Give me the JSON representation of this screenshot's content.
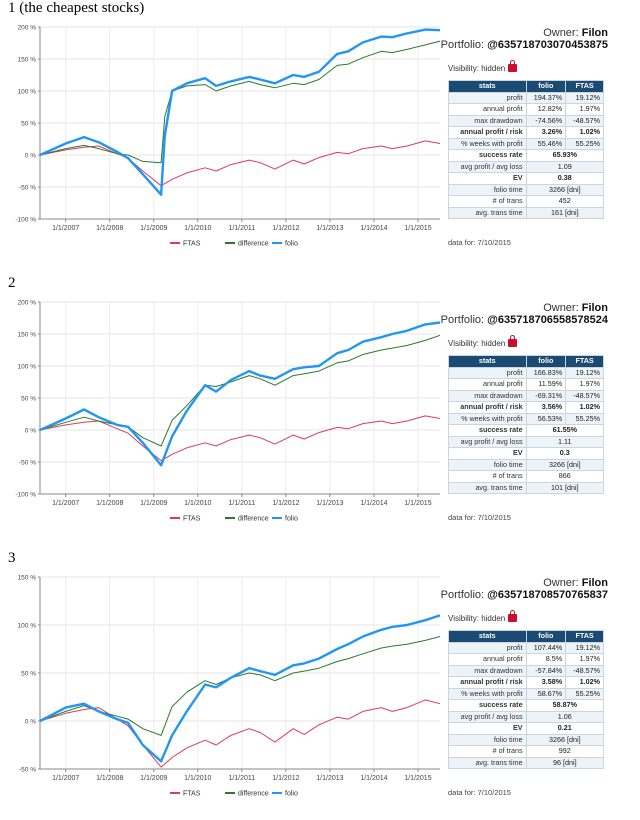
{
  "colors": {
    "ftas": "#dc3b5d",
    "difference": "#2c7a2c",
    "folio": "#2196f3",
    "header": "#1b4a72"
  },
  "sections": [
    {
      "title": "1 (the cheapest stocks)",
      "owner_label": "Owner:",
      "owner": "Filon",
      "portfolio_label": "Portfolio:",
      "portfolio": "@635718703070453875",
      "visibility": "Visibility: hidden",
      "stats_header": [
        "stats",
        "folio",
        "FTAS"
      ],
      "stats_rows": [
        {
          "label": "profit",
          "folio": "194.37%",
          "ftas": "19.12%"
        },
        {
          "label": "annual profit",
          "folio": "12.82%",
          "ftas": "1.97%"
        },
        {
          "label": "max drawdown",
          "folio": "-74.56%",
          "ftas": "-48.57%"
        },
        {
          "label": "annual profit / risk",
          "folio": "3.26%",
          "ftas": "1.02%"
        },
        {
          "label": "% weeks with profit",
          "folio": "55.46%",
          "ftas": "55.25%"
        },
        {
          "label": "success rate",
          "folio": "65.93%"
        },
        {
          "label": "avg profit / avg loss",
          "folio": "1.09"
        },
        {
          "label": "EV",
          "folio": "0.38"
        },
        {
          "label": "folio time",
          "folio": "3266 [dni]"
        },
        {
          "label": "# of trans",
          "folio": "452"
        },
        {
          "label": "avg. trans time",
          "folio": "161 [dni]"
        }
      ],
      "data_for": "data for: 7/10/2015"
    },
    {
      "title": "2",
      "owner_label": "Owner:",
      "owner": "Filon",
      "portfolio_label": "Portfolio:",
      "portfolio": "@635718706558578524",
      "visibility": "Visibility: hidden",
      "stats_header": [
        "stats",
        "folio",
        "FTAS"
      ],
      "stats_rows": [
        {
          "label": "profit",
          "folio": "166.83%",
          "ftas": "19.12%"
        },
        {
          "label": "annual profit",
          "folio": "11.59%",
          "ftas": "1.97%"
        },
        {
          "label": "max drawdown",
          "folio": "-69.31%",
          "ftas": "-48.57%"
        },
        {
          "label": "annual profit / risk",
          "folio": "3.56%",
          "ftas": "1.02%"
        },
        {
          "label": "% weeks with profit",
          "folio": "56.53%",
          "ftas": "55.25%"
        },
        {
          "label": "success rate",
          "folio": "61.55%"
        },
        {
          "label": "avg profit / avg loss",
          "folio": "1.11"
        },
        {
          "label": "EV",
          "folio": "0.3"
        },
        {
          "label": "folio time",
          "folio": "3266 [dni]"
        },
        {
          "label": "# of trans",
          "folio": "866"
        },
        {
          "label": "avg. trans time",
          "folio": "101 [dni]"
        }
      ],
      "data_for": "data for: 7/10/2015"
    },
    {
      "title": "3",
      "owner_label": "Owner:",
      "owner": "Filon",
      "portfolio_label": "Portfolio:",
      "portfolio": "@635718708570765837",
      "visibility": "Visibility: hidden",
      "stats_header": [
        "stats",
        "folio",
        "FTAS"
      ],
      "stats_rows": [
        {
          "label": "profit",
          "folio": "107.44%",
          "ftas": "19.12%"
        },
        {
          "label": "annual profit",
          "folio": "8.5%",
          "ftas": "1.97%"
        },
        {
          "label": "max drawdown",
          "folio": "-57.84%",
          "ftas": "-48.57%"
        },
        {
          "label": "annual profit / risk",
          "folio": "3.58%",
          "ftas": "1.02%"
        },
        {
          "label": "% weeks with profit",
          "folio": "58.67%",
          "ftas": "55.25%"
        },
        {
          "label": "success rate",
          "folio": "58.87%"
        },
        {
          "label": "avg profit / avg loss",
          "folio": "1.06"
        },
        {
          "label": "EV",
          "folio": "0.21"
        },
        {
          "label": "folio time",
          "folio": "3266 [dni]"
        },
        {
          "label": "# of trans",
          "folio": "992"
        },
        {
          "label": "avg. trans time",
          "folio": "96 [dni]"
        }
      ],
      "data_for": "data for: 7/10/2015"
    }
  ],
  "chart_data": [
    {
      "type": "line",
      "ylim": [
        -100,
        200
      ],
      "yticks": [
        -100,
        -50,
        0,
        50,
        100,
        150,
        200
      ],
      "ytick_labels": [
        "-100 %",
        "-50 %",
        "0 %",
        "50 %",
        "100 %",
        "150 %",
        "200 %"
      ],
      "xlim": [
        "2006-06",
        "2015-07"
      ],
      "xtick_labels": [
        "1/1/2007",
        "1/1/2008",
        "1/1/2009",
        "1/1/2010",
        "1/1/2011",
        "1/1/2012",
        "1/1/2013",
        "1/1/2014",
        "1/1/2015"
      ],
      "grid": true,
      "legend": "bottom",
      "series": [
        {
          "name": "FTAS",
          "x": [
            "2006-06",
            "2007-01",
            "2007-06",
            "2007-10",
            "2008-03",
            "2008-06",
            "2008-10",
            "2009-03",
            "2009-06",
            "2009-10",
            "2010-03",
            "2010-06",
            "2010-10",
            "2011-03",
            "2011-06",
            "2011-10",
            "2012-03",
            "2012-06",
            "2012-10",
            "2013-03",
            "2013-06",
            "2013-10",
            "2014-03",
            "2014-06",
            "2014-10",
            "2015-03",
            "2015-07"
          ],
          "y": [
            0,
            8,
            12,
            14,
            2,
            -5,
            -25,
            -48,
            -38,
            -28,
            -20,
            -25,
            -15,
            -8,
            -12,
            -22,
            -8,
            -14,
            -4,
            4,
            2,
            10,
            14,
            10,
            14,
            22,
            18
          ]
        },
        {
          "name": "difference",
          "x": [
            "2006-06",
            "2007-01",
            "2007-06",
            "2007-10",
            "2008-03",
            "2008-06",
            "2008-10",
            "2009-03",
            "2009-04",
            "2009-06",
            "2009-10",
            "2010-03",
            "2010-06",
            "2010-10",
            "2011-03",
            "2011-06",
            "2011-10",
            "2012-03",
            "2012-06",
            "2012-10",
            "2013-03",
            "2013-06",
            "2013-10",
            "2014-03",
            "2014-06",
            "2014-10",
            "2015-03",
            "2015-07"
          ],
          "y": [
            0,
            10,
            15,
            10,
            2,
            0,
            -10,
            -12,
            60,
            100,
            108,
            110,
            100,
            108,
            115,
            110,
            105,
            112,
            110,
            118,
            140,
            142,
            152,
            162,
            160,
            165,
            172,
            178
          ]
        },
        {
          "name": "folio",
          "x": [
            "2006-06",
            "2007-01",
            "2007-06",
            "2007-10",
            "2008-03",
            "2008-06",
            "2008-10",
            "2009-03",
            "2009-04",
            "2009-06",
            "2009-10",
            "2010-03",
            "2010-06",
            "2010-10",
            "2011-03",
            "2011-06",
            "2011-10",
            "2012-03",
            "2012-06",
            "2012-10",
            "2013-03",
            "2013-06",
            "2013-10",
            "2014-03",
            "2014-06",
            "2014-10",
            "2015-03",
            "2015-07"
          ],
          "y": [
            0,
            18,
            28,
            20,
            5,
            -5,
            -30,
            -62,
            30,
            100,
            112,
            120,
            108,
            115,
            122,
            118,
            112,
            125,
            122,
            130,
            158,
            162,
            176,
            185,
            184,
            190,
            196,
            195
          ]
        }
      ]
    },
    {
      "type": "line",
      "ylim": [
        -100,
        200
      ],
      "yticks": [
        -100,
        -50,
        0,
        50,
        100,
        150,
        200
      ],
      "ytick_labels": [
        "-100 %",
        "-50 %",
        "0 %",
        "50 %",
        "100 %",
        "150 %",
        "200 %"
      ],
      "xlim": [
        "2006-06",
        "2015-07"
      ],
      "xtick_labels": [
        "1/1/2007",
        "1/1/2008",
        "1/1/2009",
        "1/1/2010",
        "1/1/2011",
        "1/1/2012",
        "1/1/2013",
        "1/1/2014",
        "1/1/2015"
      ],
      "grid": true,
      "legend": "bottom",
      "series": [
        {
          "name": "FTAS",
          "x": [
            "2006-06",
            "2007-01",
            "2007-06",
            "2007-10",
            "2008-03",
            "2008-06",
            "2008-10",
            "2009-03",
            "2009-06",
            "2009-10",
            "2010-03",
            "2010-06",
            "2010-10",
            "2011-03",
            "2011-06",
            "2011-10",
            "2012-03",
            "2012-06",
            "2012-10",
            "2013-03",
            "2013-06",
            "2013-10",
            "2014-03",
            "2014-06",
            "2014-10",
            "2015-03",
            "2015-07"
          ],
          "y": [
            0,
            8,
            12,
            14,
            2,
            -5,
            -25,
            -48,
            -38,
            -28,
            -20,
            -25,
            -15,
            -8,
            -12,
            -22,
            -8,
            -14,
            -4,
            4,
            2,
            10,
            14,
            10,
            14,
            22,
            18
          ]
        },
        {
          "name": "difference",
          "x": [
            "2006-06",
            "2007-01",
            "2007-06",
            "2007-10",
            "2008-03",
            "2008-06",
            "2008-10",
            "2009-03",
            "2009-06",
            "2009-10",
            "2010-03",
            "2010-06",
            "2010-10",
            "2011-03",
            "2011-06",
            "2011-10",
            "2012-03",
            "2012-06",
            "2012-10",
            "2013-03",
            "2013-06",
            "2013-10",
            "2014-03",
            "2014-06",
            "2014-10",
            "2015-03",
            "2015-07"
          ],
          "y": [
            0,
            12,
            20,
            14,
            8,
            5,
            -12,
            -25,
            15,
            38,
            70,
            68,
            75,
            85,
            80,
            70,
            85,
            88,
            92,
            105,
            108,
            118,
            125,
            128,
            132,
            140,
            148
          ]
        },
        {
          "name": "folio",
          "x": [
            "2006-06",
            "2007-01",
            "2007-06",
            "2007-10",
            "2008-03",
            "2008-06",
            "2008-10",
            "2009-03",
            "2009-06",
            "2009-10",
            "2010-03",
            "2010-06",
            "2010-10",
            "2011-03",
            "2011-06",
            "2011-10",
            "2012-03",
            "2012-06",
            "2012-10",
            "2013-03",
            "2013-06",
            "2013-10",
            "2014-03",
            "2014-06",
            "2014-10",
            "2015-03",
            "2015-07"
          ],
          "y": [
            0,
            18,
            32,
            20,
            8,
            5,
            -20,
            -55,
            -10,
            30,
            70,
            60,
            78,
            92,
            85,
            80,
            95,
            98,
            100,
            120,
            125,
            138,
            145,
            150,
            155,
            165,
            168
          ]
        }
      ]
    },
    {
      "type": "line",
      "ylim": [
        -50,
        150
      ],
      "yticks": [
        -50,
        0,
        50,
        100,
        150
      ],
      "ytick_labels": [
        "-50 %",
        "0 %",
        "50 %",
        "100 %",
        "150 %"
      ],
      "xlim": [
        "2006-06",
        "2015-07"
      ],
      "xtick_labels": [
        "1/1/2007",
        "1/1/2008",
        "1/1/2009",
        "1/1/2010",
        "1/1/2011",
        "1/1/2012",
        "1/1/2013",
        "1/1/2014",
        "1/1/2015"
      ],
      "grid": true,
      "legend": "bottom",
      "series": [
        {
          "name": "FTAS",
          "x": [
            "2006-06",
            "2007-01",
            "2007-06",
            "2007-10",
            "2008-03",
            "2008-06",
            "2008-10",
            "2009-03",
            "2009-06",
            "2009-10",
            "2010-03",
            "2010-06",
            "2010-10",
            "2011-03",
            "2011-06",
            "2011-10",
            "2012-03",
            "2012-06",
            "2012-10",
            "2013-03",
            "2013-06",
            "2013-10",
            "2014-03",
            "2014-06",
            "2014-10",
            "2015-03",
            "2015-07"
          ],
          "y": [
            0,
            8,
            12,
            14,
            2,
            -5,
            -25,
            -48,
            -38,
            -28,
            -20,
            -25,
            -15,
            -8,
            -12,
            -22,
            -8,
            -14,
            -4,
            4,
            2,
            10,
            14,
            10,
            14,
            22,
            18
          ]
        },
        {
          "name": "difference",
          "x": [
            "2006-06",
            "2007-01",
            "2007-06",
            "2007-10",
            "2008-03",
            "2008-06",
            "2008-10",
            "2009-03",
            "2009-06",
            "2009-10",
            "2010-03",
            "2010-06",
            "2010-10",
            "2011-03",
            "2011-06",
            "2011-10",
            "2012-03",
            "2012-06",
            "2012-10",
            "2013-03",
            "2013-06",
            "2013-10",
            "2014-03",
            "2014-06",
            "2014-10",
            "2015-03",
            "2015-07"
          ],
          "y": [
            0,
            10,
            16,
            10,
            5,
            2,
            -8,
            -15,
            15,
            30,
            42,
            38,
            45,
            50,
            48,
            42,
            50,
            52,
            55,
            62,
            65,
            70,
            76,
            78,
            80,
            84,
            88
          ]
        },
        {
          "name": "folio",
          "x": [
            "2006-06",
            "2007-01",
            "2007-06",
            "2007-10",
            "2008-03",
            "2008-06",
            "2008-10",
            "2009-03",
            "2009-06",
            "2009-10",
            "2010-03",
            "2010-06",
            "2010-10",
            "2011-03",
            "2011-06",
            "2011-10",
            "2012-03",
            "2012-06",
            "2012-10",
            "2013-03",
            "2013-06",
            "2013-10",
            "2014-03",
            "2014-06",
            "2014-10",
            "2015-03",
            "2015-07"
          ],
          "y": [
            0,
            14,
            18,
            10,
            2,
            -2,
            -25,
            -42,
            -15,
            10,
            38,
            35,
            45,
            55,
            52,
            48,
            58,
            60,
            65,
            75,
            80,
            88,
            95,
            98,
            100,
            105,
            110
          ]
        }
      ]
    }
  ]
}
